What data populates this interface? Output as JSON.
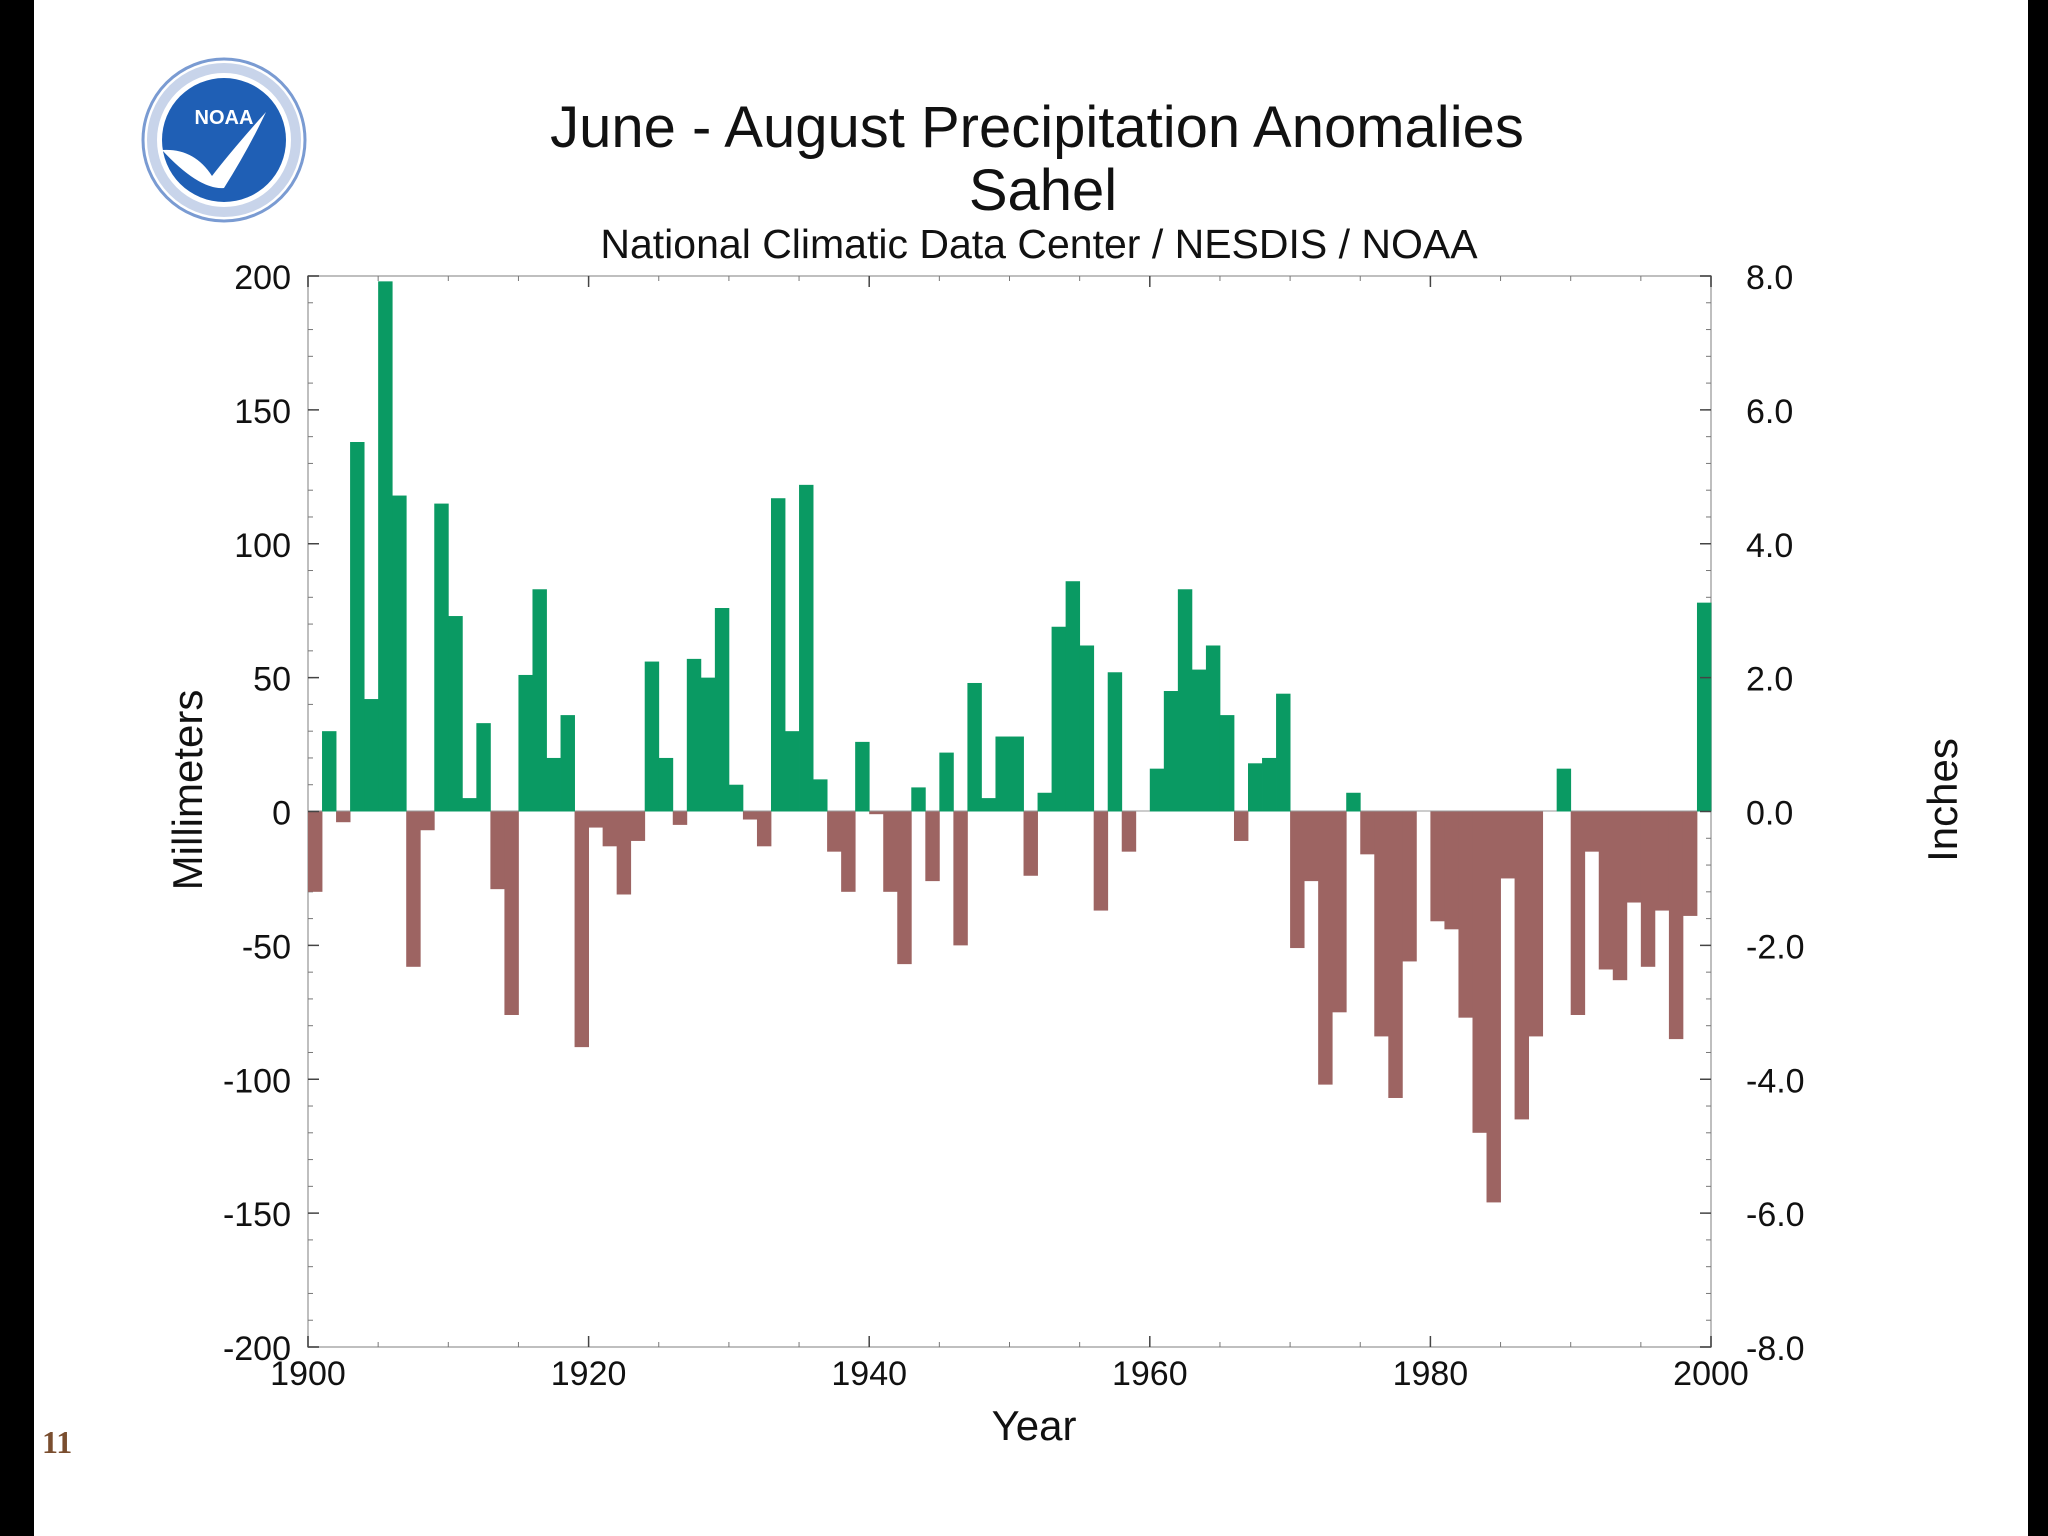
{
  "slide": {
    "page_number": "11"
  },
  "logo": {
    "text": "NOAA",
    "name": "noaa-logo"
  },
  "colors": {
    "positive": "#0a9a63",
    "negative": "#9d6462",
    "frame": "#bfbfbf",
    "text": "#111111"
  },
  "chart_data": {
    "type": "bar",
    "title": "June - August Precipitation Anomalies",
    "subtitle_region": "Sahel",
    "subtitle_source": "National Climatic Data Center / NESDIS / NOAA",
    "xlabel": "Year",
    "ylabel": "Millimeters",
    "ylabel_right": "Inches",
    "xlim": [
      1900,
      2000
    ],
    "ylim": [
      -200,
      200
    ],
    "ylim_right": [
      -8.0,
      8.0
    ],
    "x_ticks": [
      "1900",
      "1920",
      "1940",
      "1960",
      "1980",
      "2000"
    ],
    "y_ticks": [
      "200",
      "150",
      "100",
      "50",
      "0",
      "-50",
      "-100",
      "-150",
      "-200"
    ],
    "y_ticks_right": [
      "8.0",
      "6.0",
      "4.0",
      "2.0",
      "0.0",
      "-2.0",
      "-4.0",
      "-6.0",
      "-8.0"
    ],
    "grid": false,
    "years": [
      1900,
      1901,
      1902,
      1903,
      1904,
      1905,
      1906,
      1907,
      1908,
      1909,
      1910,
      1911,
      1912,
      1913,
      1914,
      1915,
      1916,
      1917,
      1918,
      1919,
      1920,
      1921,
      1922,
      1923,
      1924,
      1925,
      1926,
      1927,
      1928,
      1929,
      1930,
      1931,
      1932,
      1933,
      1934,
      1935,
      1936,
      1937,
      1938,
      1939,
      1940,
      1941,
      1942,
      1943,
      1944,
      1945,
      1946,
      1947,
      1948,
      1949,
      1950,
      1951,
      1952,
      1953,
      1954,
      1955,
      1956,
      1957,
      1958,
      1959,
      1960,
      1961,
      1962,
      1963,
      1964,
      1965,
      1966,
      1967,
      1968,
      1969,
      1970,
      1971,
      1972,
      1973,
      1974,
      1975,
      1976,
      1977,
      1978,
      1979,
      1980,
      1981,
      1982,
      1983,
      1984,
      1985,
      1986,
      1987,
      1988,
      1989,
      1990,
      1991,
      1992,
      1993,
      1994,
      1995,
      1996,
      1997,
      1998,
      1999
    ],
    "values": [
      -30,
      30,
      -4,
      138,
      42,
      198,
      118,
      -58,
      -7,
      115,
      73,
      5,
      33,
      -29,
      -76,
      51,
      83,
      20,
      36,
      -88,
      -6,
      -13,
      -31,
      -11,
      56,
      20,
      -5,
      57,
      50,
      76,
      10,
      -3,
      -13,
      117,
      30,
      122,
      12,
      -15,
      -30,
      26,
      -1,
      -30,
      -57,
      9,
      -26,
      22,
      -50,
      48,
      5,
      28,
      28,
      -24,
      7,
      69,
      86,
      62,
      -37,
      52,
      -15,
      0,
      16,
      45,
      83,
      53,
      62,
      36,
      -11,
      18,
      20,
      44,
      -51,
      -26,
      -102,
      -75,
      7,
      -16,
      -84,
      -107,
      -56,
      0,
      -41,
      -44,
      -77,
      -120,
      -146,
      -25,
      -115,
      -84,
      0,
      16,
      -76,
      -15,
      -59,
      -63,
      -34,
      -58,
      -37,
      -85,
      -39,
      78
    ]
  }
}
